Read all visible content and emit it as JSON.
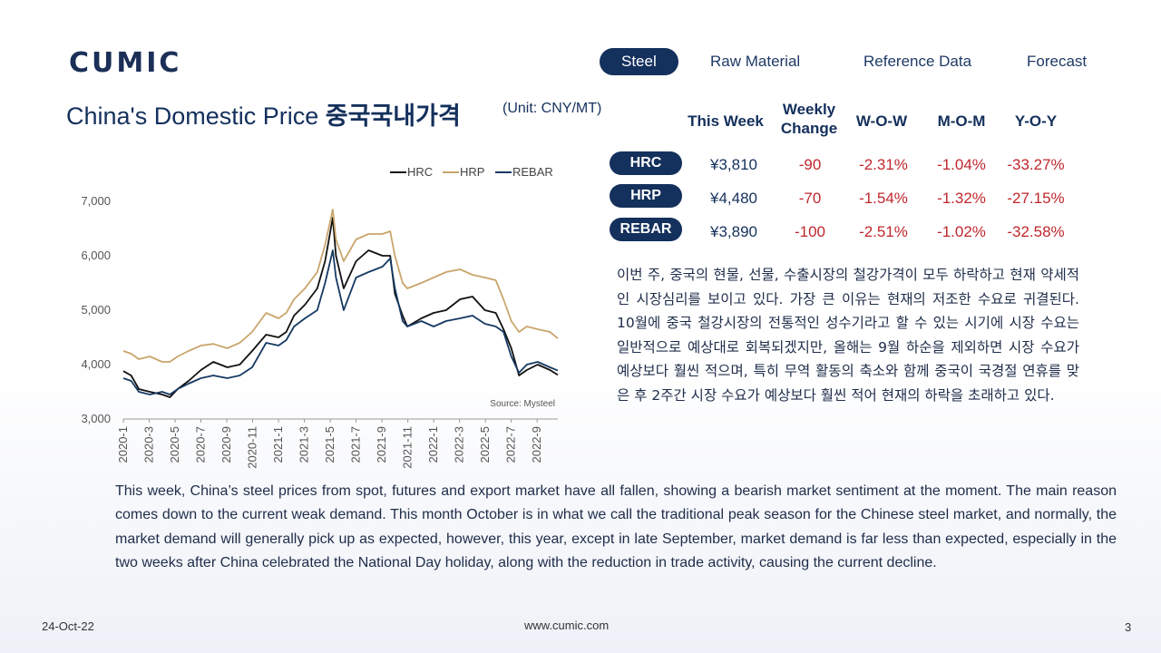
{
  "logo": "CUMIC",
  "nav": [
    {
      "label": "Steel",
      "active": true
    },
    {
      "label": "Raw Material",
      "active": false
    },
    {
      "label": "Reference Data",
      "active": false
    },
    {
      "label": "Forecast",
      "active": false
    }
  ],
  "title_en": "China's Domestic Price",
  "title_ko": "중국국내가격",
  "unit": "(Unit: CNY/MT)",
  "table": {
    "headers": [
      "This Week",
      "Weekly\nChange",
      "W-O-W",
      "M-O-M",
      "Y-O-Y"
    ],
    "rows": [
      {
        "label": "HRC",
        "price": "¥3,810",
        "change": "-90",
        "wow": "-2.31%",
        "mom": "-1.04%",
        "yoy": "-33.27%"
      },
      {
        "label": "HRP",
        "price": "¥4,480",
        "change": "-70",
        "wow": "-1.54%",
        "mom": "-1.32%",
        "yoy": "-27.15%"
      },
      {
        "label": "REBAR",
        "price": "¥3,890",
        "change": "-100",
        "wow": "-2.51%",
        "mom": "-1.02%",
        "yoy": "-32.58%"
      }
    ]
  },
  "para_ko": "이번 주, 중국의 현물, 선물, 수출시장의 철강가격이 모두 하락하고 현재 약세적인 시장심리를 보이고 있다. 가장 큰 이유는 현재의 저조한 수요로 귀결된다. 10월에 중국 철강시장의 전통적인 성수기라고 할 수 있는 시기에 시장 수요는 일반적으로 예상대로 회복되겠지만, 올해는 9월 하순을 제외하면 시장 수요가 예상보다 훨씬 적으며, 특히 무역 활동의 축소와 함께 중국이 국경절 연휴를 맞은 후 2주간 시장 수요가 예상보다 훨씬 적어 현재의 하락을 초래하고 있다.",
  "para_en": "This week, China’s steel prices from spot, futures and export market have all fallen, showing a bearish market sentiment at the moment. The main reason comes down to the current weak demand. This month October is in what we call the traditional peak season for the Chinese steel market, and normally, the market demand will generally pick up as expected, however, this year, except in late September, market demand is far less than expected, especially in the two weeks after China celebrated the National Day holiday, along with the reduction in trade activity, causing the current decline.",
  "footer": {
    "date": "24-Oct-22",
    "url": "www.cumic.com",
    "page": "3"
  },
  "chart_data": {
    "type": "line",
    "source": "Source: Mysteel",
    "ylim": [
      3000,
      7000
    ],
    "yticks": [
      "3,000",
      "4,000",
      "5,000",
      "6,000",
      "7,000"
    ],
    "yticks_values": [
      3000,
      4000,
      5000,
      6000,
      7000
    ],
    "xlim": [
      2020.0,
      2022.8
    ],
    "xticks": [
      "2020-1",
      "2020-3",
      "2020-5",
      "2020-7",
      "2020-9",
      "2020-11",
      "2021-1",
      "2021-3",
      "2021-5",
      "2021-7",
      "2021-9",
      "2021-11",
      "2022-1",
      "2022-3",
      "2022-5",
      "2022-7",
      "2022-9"
    ],
    "xticks_values": [
      2020.0,
      2020.1667,
      2020.3333,
      2020.5,
      2020.6667,
      2020.8333,
      2021.0,
      2021.1667,
      2021.3333,
      2021.5,
      2021.6667,
      2021.8333,
      2022.0,
      2022.1667,
      2022.3333,
      2022.5,
      2022.6667
    ],
    "grid": false,
    "legend": "top",
    "series": [
      {
        "name": "HRC",
        "color": "#111111",
        "x": [
          2020.0,
          2020.05,
          2020.1,
          2020.17,
          2020.25,
          2020.3,
          2020.35,
          2020.42,
          2020.5,
          2020.58,
          2020.67,
          2020.75,
          2020.83,
          2020.92,
          2021.0,
          2021.05,
          2021.1,
          2021.17,
          2021.25,
          2021.3,
          2021.35,
          2021.37,
          2021.42,
          2021.5,
          2021.58,
          2021.67,
          2021.72,
          2021.75,
          2021.8,
          2021.83,
          2021.92,
          2022.0,
          2022.08,
          2022.17,
          2022.25,
          2022.33,
          2022.4,
          2022.45,
          2022.5,
          2022.55,
          2022.6,
          2022.67,
          2022.75,
          2022.8
        ],
        "y": [
          3880,
          3800,
          3550,
          3500,
          3450,
          3400,
          3550,
          3700,
          3900,
          4050,
          3950,
          4000,
          4250,
          4550,
          4500,
          4600,
          4900,
          5100,
          5400,
          5900,
          6700,
          6000,
          5400,
          5900,
          6100,
          6000,
          6000,
          5300,
          4900,
          4700,
          4850,
          4950,
          5000,
          5200,
          5250,
          5000,
          4950,
          4650,
          4300,
          3800,
          3900,
          4000,
          3900,
          3810
        ]
      },
      {
        "name": "HRP",
        "color": "#c9a56c",
        "x": [
          2020.0,
          2020.05,
          2020.1,
          2020.17,
          2020.25,
          2020.3,
          2020.35,
          2020.42,
          2020.5,
          2020.58,
          2020.67,
          2020.75,
          2020.83,
          2020.92,
          2021.0,
          2021.05,
          2021.1,
          2021.17,
          2021.25,
          2021.3,
          2021.35,
          2021.37,
          2021.42,
          2021.5,
          2021.58,
          2021.67,
          2021.72,
          2021.75,
          2021.8,
          2021.83,
          2021.92,
          2022.0,
          2022.08,
          2022.17,
          2022.25,
          2022.33,
          2022.4,
          2022.45,
          2022.5,
          2022.55,
          2022.6,
          2022.67,
          2022.75,
          2022.8
        ],
        "y": [
          4250,
          4200,
          4100,
          4150,
          4050,
          4050,
          4150,
          4250,
          4350,
          4380,
          4300,
          4400,
          4600,
          4950,
          4850,
          4950,
          5200,
          5400,
          5700,
          6200,
          6850,
          6300,
          5900,
          6300,
          6400,
          6400,
          6450,
          6000,
          5500,
          5400,
          5500,
          5600,
          5700,
          5750,
          5650,
          5600,
          5550,
          5200,
          4800,
          4600,
          4700,
          4650,
          4600,
          4480
        ]
      },
      {
        "name": "REBAR",
        "color": "#163a63",
        "x": [
          2020.0,
          2020.05,
          2020.1,
          2020.17,
          2020.25,
          2020.3,
          2020.35,
          2020.42,
          2020.5,
          2020.58,
          2020.67,
          2020.75,
          2020.83,
          2020.92,
          2021.0,
          2021.05,
          2021.1,
          2021.17,
          2021.25,
          2021.3,
          2021.35,
          2021.37,
          2021.42,
          2021.5,
          2021.58,
          2021.67,
          2021.72,
          2021.75,
          2021.8,
          2021.83,
          2021.92,
          2022.0,
          2022.08,
          2022.17,
          2022.25,
          2022.33,
          2022.4,
          2022.45,
          2022.5,
          2022.55,
          2022.6,
          2022.67,
          2022.75,
          2022.8
        ],
        "y": [
          3750,
          3700,
          3500,
          3450,
          3500,
          3450,
          3550,
          3650,
          3750,
          3800,
          3750,
          3800,
          3950,
          4400,
          4350,
          4450,
          4700,
          4850,
          5000,
          5500,
          6100,
          5600,
          5000,
          5600,
          5700,
          5800,
          5950,
          5400,
          4800,
          4700,
          4800,
          4700,
          4800,
          4850,
          4900,
          4750,
          4700,
          4600,
          4150,
          3850,
          4000,
          4050,
          3950,
          3890
        ]
      }
    ]
  }
}
